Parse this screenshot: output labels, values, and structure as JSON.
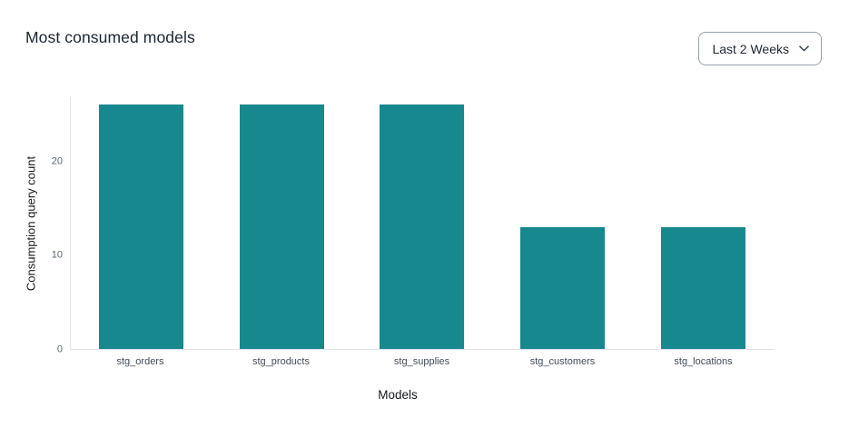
{
  "header": {
    "title": "Most consumed models",
    "time_range": {
      "selected": "Last 2 Weeks",
      "icon": "chevron-down-icon"
    }
  },
  "chart_data": {
    "type": "bar",
    "title": "Most consumed models",
    "categories": [
      "stg_orders",
      "stg_products",
      "stg_supplies",
      "stg_customers",
      "stg_locations"
    ],
    "values": [
      26,
      26,
      26,
      13,
      13
    ],
    "xlabel": "Models",
    "ylabel": "Consumption query count",
    "ylim": [
      0,
      26.8
    ],
    "yticks": [
      0,
      10,
      20
    ],
    "grid": false,
    "legend": false,
    "bar_color": "#17898E"
  },
  "colors": {
    "bar_teal": "#17898E",
    "title_text": "#1b2533",
    "axis_line": "#e2e5e9",
    "y_tick_text": "#5a6472",
    "x_tick_text": "#434c59",
    "dropdown_border": "#98a1ae",
    "background": "#ffffff"
  }
}
